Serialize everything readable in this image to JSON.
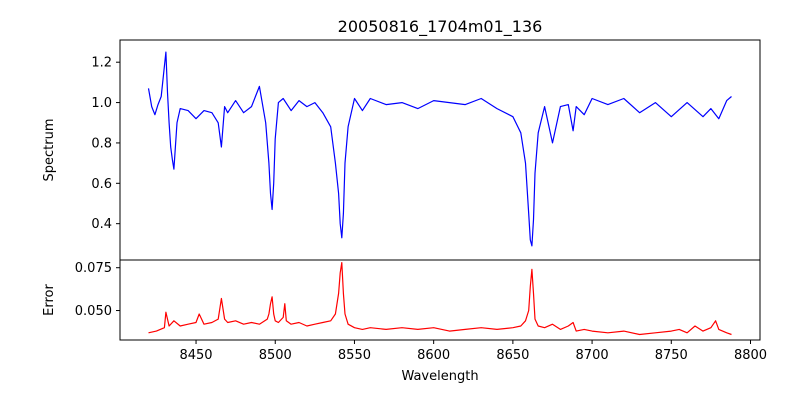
{
  "chart_data": [
    {
      "type": "line",
      "title": "20050816_1704m01_136",
      "xlabel": "",
      "ylabel": "Spectrum",
      "xlim": [
        8402,
        8806
      ],
      "ylim": [
        0.22,
        1.31
      ],
      "yticks": [
        0.4,
        0.6,
        0.8,
        1.0,
        1.2
      ],
      "ytick_labels": [
        "0.4",
        "0.6",
        "0.8",
        "1.0",
        "1.2"
      ],
      "series": [
        {
          "color": "#0000ff",
          "x": [
            8420,
            8422,
            8424,
            8426,
            8428,
            8430,
            8431,
            8432,
            8433,
            8434,
            8435,
            8436,
            8438,
            8440,
            8445,
            8450,
            8455,
            8460,
            8464,
            8466,
            8468,
            8470,
            8475,
            8480,
            8485,
            8490,
            8494,
            8496,
            8497,
            8498,
            8499,
            8500,
            8502,
            8505,
            8510,
            8515,
            8520,
            8525,
            8530,
            8535,
            8538,
            8540,
            8541,
            8542,
            8543,
            8544,
            8546,
            8550,
            8555,
            8560,
            8570,
            8580,
            8590,
            8600,
            8610,
            8620,
            8630,
            8640,
            8650,
            8655,
            8658,
            8660,
            8661,
            8662,
            8663,
            8664,
            8666,
            8670,
            8675,
            8680,
            8685,
            8688,
            8690,
            8695,
            8700,
            8710,
            8720,
            8730,
            8740,
            8750,
            8760,
            8770,
            8775,
            8780,
            8785,
            8788
          ],
          "y": [
            1.07,
            0.98,
            0.94,
            0.99,
            1.03,
            1.18,
            1.25,
            1.05,
            0.9,
            0.78,
            0.72,
            0.67,
            0.9,
            0.97,
            0.96,
            0.92,
            0.96,
            0.95,
            0.9,
            0.78,
            0.98,
            0.95,
            1.01,
            0.95,
            0.98,
            1.08,
            0.9,
            0.7,
            0.55,
            0.47,
            0.6,
            0.82,
            1.0,
            1.02,
            0.96,
            1.01,
            0.98,
            1.0,
            0.95,
            0.88,
            0.7,
            0.55,
            0.4,
            0.33,
            0.45,
            0.7,
            0.88,
            1.02,
            0.96,
            1.02,
            0.99,
            1.0,
            0.97,
            1.01,
            1.0,
            0.99,
            1.02,
            0.97,
            0.93,
            0.85,
            0.7,
            0.45,
            0.32,
            0.29,
            0.42,
            0.65,
            0.85,
            0.98,
            0.8,
            0.98,
            0.99,
            0.86,
            0.98,
            0.94,
            1.02,
            0.99,
            1.02,
            0.95,
            1.0,
            0.93,
            1.0,
            0.93,
            0.97,
            0.92,
            1.01,
            1.03
          ]
        }
      ]
    },
    {
      "type": "line",
      "title": "",
      "xlabel": "Wavelength",
      "ylabel": "Error",
      "xlim": [
        8402,
        8806
      ],
      "ylim": [
        0.0328,
        0.0795
      ],
      "xticks": [
        8450,
        8500,
        8550,
        8600,
        8650,
        8700,
        8750,
        8800
      ],
      "xtick_labels": [
        "8450",
        "8500",
        "8550",
        "8600",
        "8650",
        "8700",
        "8750",
        "8800"
      ],
      "yticks": [
        0.05,
        0.075
      ],
      "ytick_labels": [
        "0.050",
        "0.075"
      ],
      "series": [
        {
          "color": "#ff0000",
          "x": [
            8420,
            8425,
            8430,
            8431,
            8433,
            8436,
            8440,
            8445,
            8450,
            8452,
            8455,
            8460,
            8464,
            8466,
            8468,
            8470,
            8475,
            8480,
            8485,
            8490,
            8495,
            8496,
            8497,
            8498,
            8499,
            8500,
            8502,
            8505,
            8506,
            8507,
            8510,
            8515,
            8520,
            8525,
            8530,
            8535,
            8538,
            8540,
            8541,
            8542,
            8543,
            8544,
            8546,
            8550,
            8555,
            8560,
            8570,
            8580,
            8590,
            8600,
            8610,
            8620,
            8630,
            8640,
            8650,
            8655,
            8658,
            8660,
            8661,
            8662,
            8663,
            8664,
            8666,
            8670,
            8675,
            8680,
            8685,
            8688,
            8690,
            8695,
            8700,
            8710,
            8720,
            8730,
            8740,
            8750,
            8755,
            8760,
            8765,
            8770,
            8775,
            8778,
            8780,
            8785,
            8788
          ],
          "y": [
            0.037,
            0.038,
            0.04,
            0.049,
            0.041,
            0.044,
            0.041,
            0.042,
            0.043,
            0.048,
            0.042,
            0.043,
            0.045,
            0.057,
            0.045,
            0.043,
            0.044,
            0.042,
            0.043,
            0.042,
            0.045,
            0.048,
            0.054,
            0.058,
            0.048,
            0.044,
            0.043,
            0.046,
            0.054,
            0.044,
            0.042,
            0.043,
            0.041,
            0.042,
            0.043,
            0.044,
            0.048,
            0.06,
            0.072,
            0.078,
            0.06,
            0.048,
            0.042,
            0.04,
            0.039,
            0.04,
            0.039,
            0.04,
            0.039,
            0.04,
            0.038,
            0.039,
            0.04,
            0.039,
            0.04,
            0.041,
            0.044,
            0.05,
            0.064,
            0.074,
            0.06,
            0.045,
            0.041,
            0.04,
            0.042,
            0.039,
            0.041,
            0.043,
            0.038,
            0.039,
            0.038,
            0.037,
            0.038,
            0.036,
            0.037,
            0.038,
            0.039,
            0.037,
            0.041,
            0.038,
            0.04,
            0.044,
            0.039,
            0.037,
            0.036
          ]
        }
      ]
    }
  ]
}
